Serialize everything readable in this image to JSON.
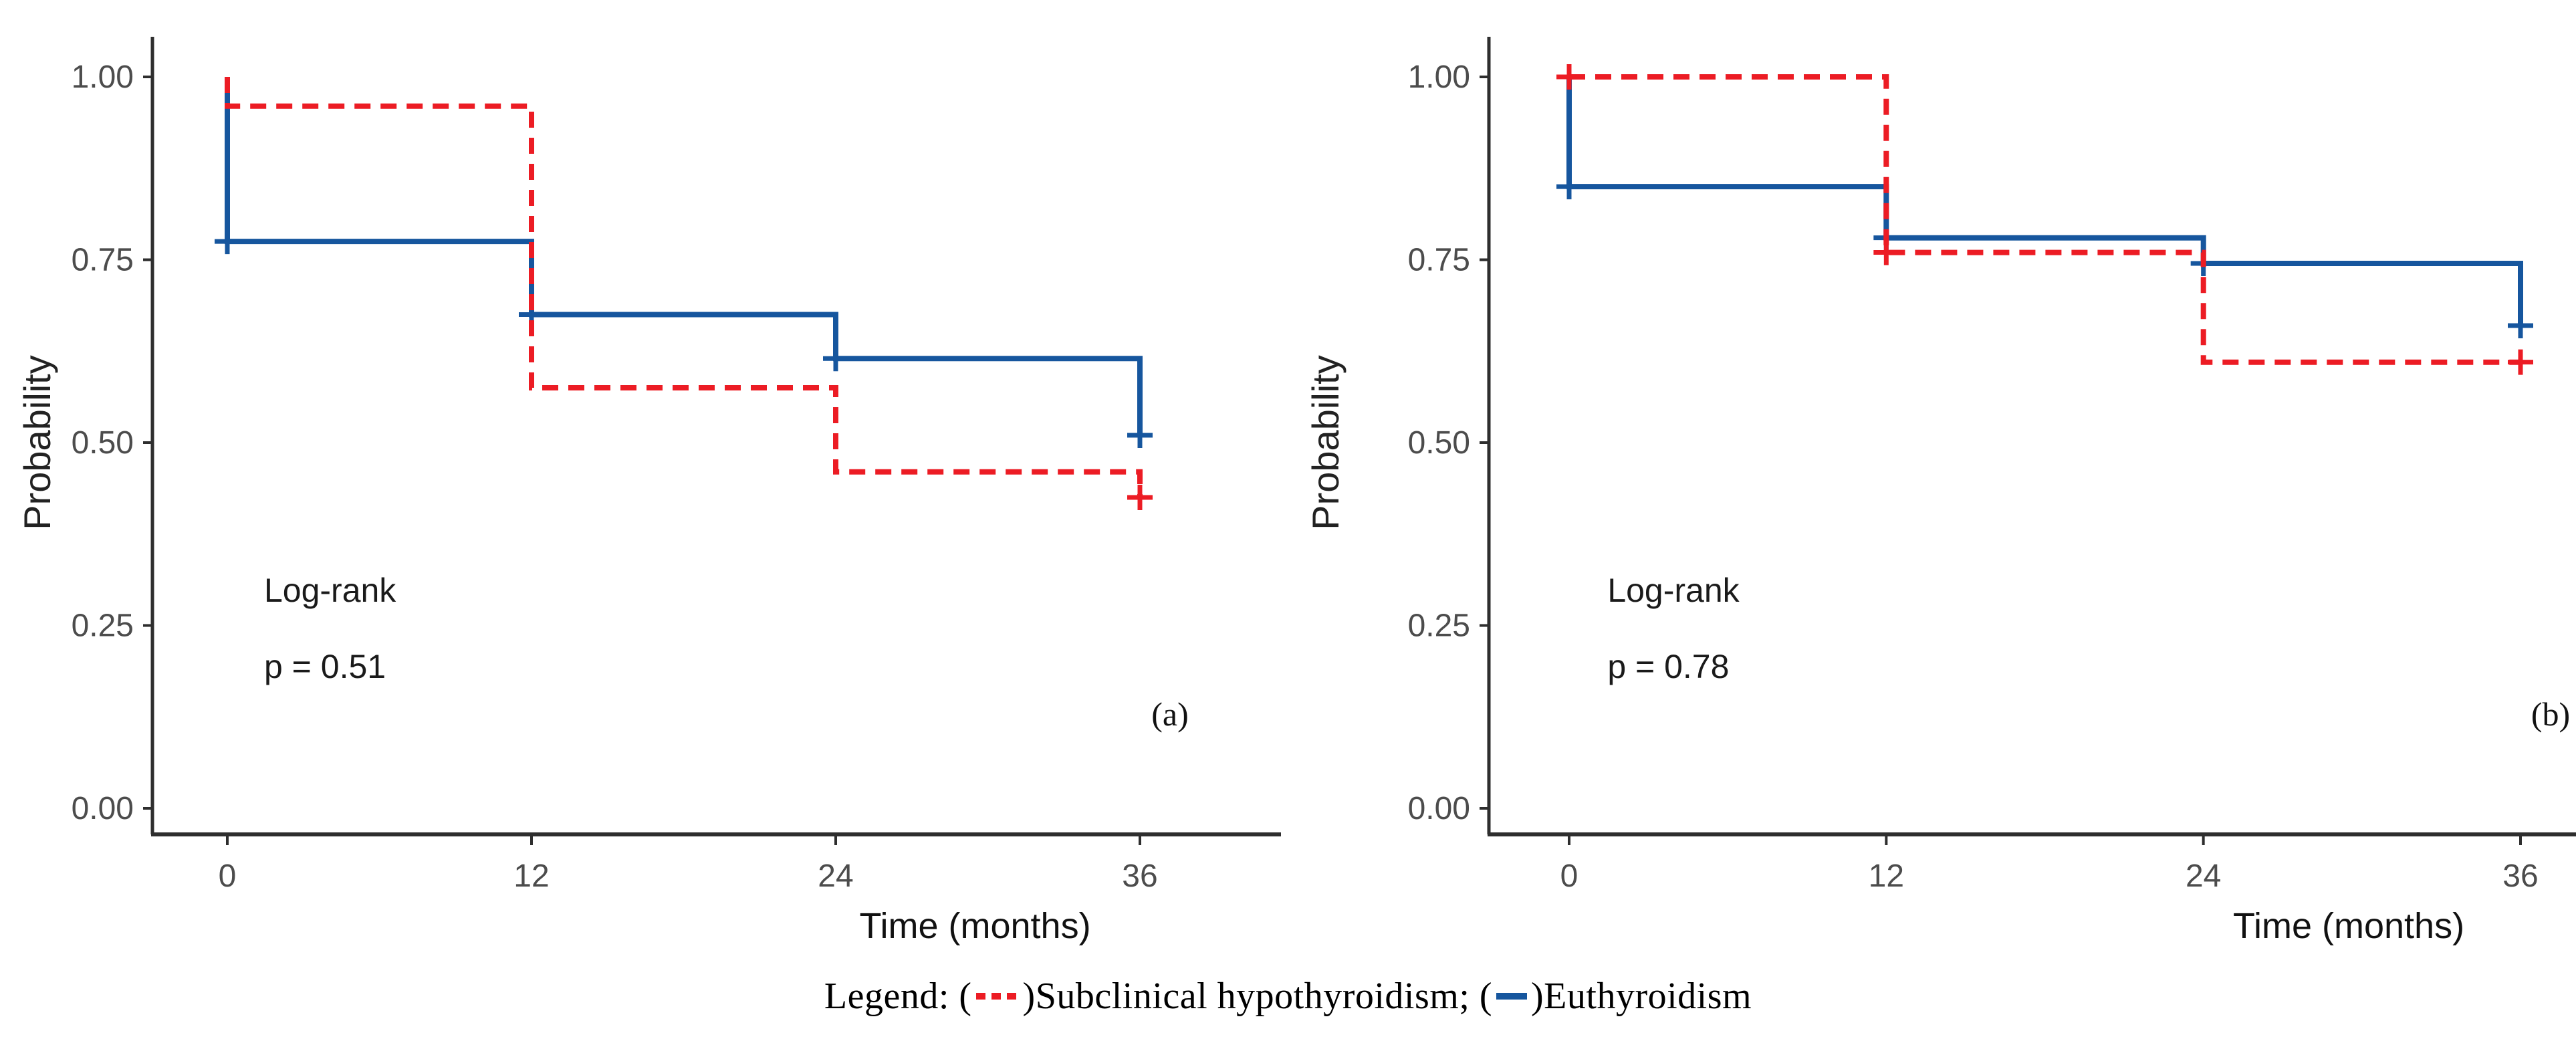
{
  "figure": {
    "background": "#ffffff",
    "colors": {
      "red": "#EC1C24",
      "blue": "#16569E",
      "axis": "#2E2E2E",
      "tick_label": "#4C4C4C",
      "annotation_text": "#1A1A1A",
      "legend_text": "#000000"
    },
    "legend": {
      "prefix": "Legend: (",
      "mid": ")Subclinical hypothyroidism; (",
      "suffix": ")Euthyroidism"
    }
  },
  "chart_data": [
    {
      "type": "line",
      "subtype": "kaplan-meier-step",
      "panel_label": "(a)",
      "annotation_line1": "Log-rank",
      "annotation_line2": "p = 0.51",
      "xlabel": "Time (months)",
      "ylabel": "Probability",
      "xlim": [
        0,
        36
      ],
      "ylim": [
        0,
        1
      ],
      "x_ticks": [
        0,
        12,
        24,
        36
      ],
      "y_ticks": [
        "0.00",
        "0.25",
        "0.50",
        "0.75",
        "1.00"
      ],
      "grid": false,
      "series": [
        {
          "name": "Euthyroidism",
          "color": "blue",
          "style": "solid",
          "points": [
            [
              0,
              1.0
            ],
            [
              0,
              0.775
            ],
            [
              12,
              0.775
            ],
            [
              12,
              0.675
            ],
            [
              24,
              0.675
            ],
            [
              24,
              0.615
            ],
            [
              36,
              0.615
            ],
            [
              36,
              0.51
            ]
          ],
          "censors": [
            [
              0,
              0.775
            ],
            [
              12,
              0.675
            ],
            [
              24,
              0.615
            ],
            [
              36,
              0.51
            ]
          ]
        },
        {
          "name": "Subclinical hypothyroidism",
          "color": "red",
          "style": "dashed",
          "points": [
            [
              0,
              1.0
            ],
            [
              0,
              0.96
            ],
            [
              12,
              0.96
            ],
            [
              12,
              0.575
            ],
            [
              24,
              0.575
            ],
            [
              24,
              0.46
            ],
            [
              36,
              0.46
            ],
            [
              36,
              0.425
            ]
          ],
          "censors": [
            [
              36,
              0.425
            ]
          ]
        }
      ]
    },
    {
      "type": "line",
      "subtype": "kaplan-meier-step",
      "panel_label": "(b)",
      "annotation_line1": "Log-rank",
      "annotation_line2": "p = 0.78",
      "xlabel": "Time (months)",
      "ylabel": "Probability",
      "xlim": [
        0,
        36
      ],
      "ylim": [
        0,
        1
      ],
      "x_ticks": [
        0,
        12,
        24,
        36
      ],
      "y_ticks": [
        "0.00",
        "0.25",
        "0.50",
        "0.75",
        "1.00"
      ],
      "grid": false,
      "series": [
        {
          "name": "Euthyroidism",
          "color": "blue",
          "style": "solid",
          "points": [
            [
              0,
              1.0
            ],
            [
              0,
              0.85
            ],
            [
              12,
              0.85
            ],
            [
              12,
              0.78
            ],
            [
              24,
              0.78
            ],
            [
              24,
              0.745
            ],
            [
              36,
              0.745
            ],
            [
              36,
              0.66
            ]
          ],
          "censors": [
            [
              0,
              0.85
            ],
            [
              12,
              0.78
            ],
            [
              24,
              0.745
            ],
            [
              36,
              0.66
            ]
          ]
        },
        {
          "name": "Subclinical hypothyroidism",
          "color": "red",
          "style": "dashed",
          "points": [
            [
              0,
              1.0
            ],
            [
              12,
              1.0
            ],
            [
              12,
              0.76
            ],
            [
              24,
              0.76
            ],
            [
              24,
              0.61
            ],
            [
              36,
              0.61
            ]
          ],
          "censors": [
            [
              0,
              1.0
            ],
            [
              12,
              0.76
            ],
            [
              36,
              0.61
            ]
          ]
        }
      ]
    }
  ]
}
